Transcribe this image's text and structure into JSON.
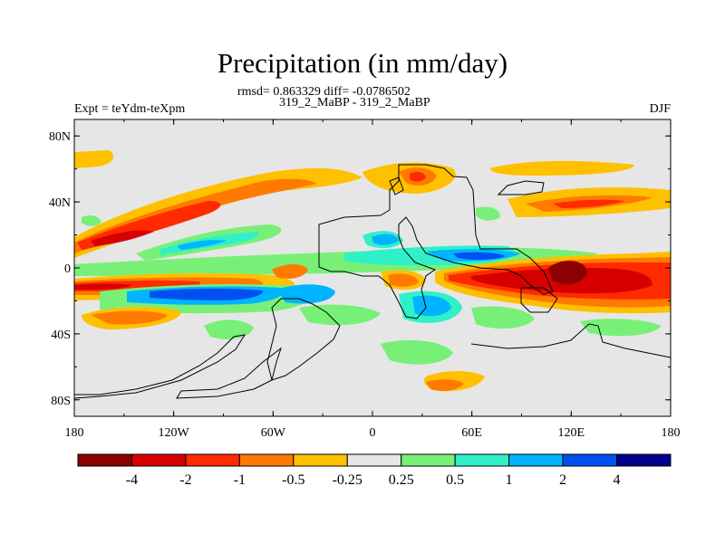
{
  "title": "Precipitation (in mm/day)",
  "stats": "rmsd= 0.863329 diff= -0.0786502",
  "experiment_name": "319_2_MaBP - 319_2_MaBP",
  "expt_label": "Expt = teYdm-teXpm",
  "season": "DJF",
  "lat_ticks": [
    "80N",
    "40N",
    "0",
    "40S",
    "80S"
  ],
  "lon_ticks": [
    "180",
    "120W",
    "60W",
    "0",
    "60E",
    "120E",
    "180"
  ],
  "colorbar": {
    "labels": [
      "-4",
      "-2",
      "-1",
      "-0.5",
      "-0.25",
      "0.25",
      "0.5",
      "1",
      "2",
      "4"
    ],
    "colors": [
      "#8b0000",
      "#d60000",
      "#ff2a00",
      "#ff7a00",
      "#ffc000",
      "#e6e6e6",
      "#78f078",
      "#30f0c8",
      "#00b4ff",
      "#0050f0",
      "#00008c"
    ]
  },
  "colors": {
    "neutral": "#e6e6e6",
    "coastline": "#000000"
  }
}
